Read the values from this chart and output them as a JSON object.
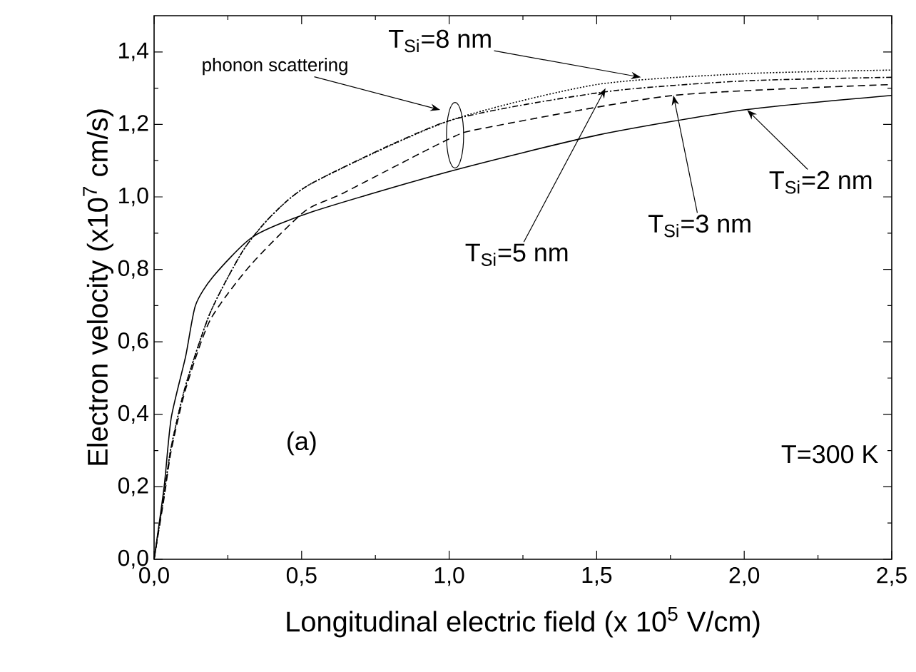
{
  "chart_data": {
    "type": "line",
    "xlabel": "Longitudinal electric field (x 10$^{5}$ V/cm)",
    "ylabel": "Electron velocity (x10$^{7}$ cm/s)",
    "x": [
      0,
      0.034,
      0.058,
      0.107,
      0.14,
      0.2,
      0.335,
      0.54,
      1.0,
      1.5,
      2.0,
      2.5
    ],
    "series": [
      {
        "color": "#000000",
        "line_style": "solid",
        "values": [
          0,
          0.2,
          0.39,
          0.56,
          0.7,
          0.78,
          0.89,
          0.96,
          1.07,
          1.17,
          1.24,
          1.28
        ]
      },
      {
        "color": "#000000",
        "line_style": "dashed",
        "x": [
          0,
          0.034,
          0.058,
          0.107,
          0.19,
          0.325,
          0.51,
          0.64,
          1.0,
          1.12,
          1.76,
          2.5
        ],
        "values": [
          0,
          0.17,
          0.3,
          0.47,
          0.66,
          0.81,
          0.96,
          1.01,
          1.16,
          1.19,
          1.28,
          1.31
        ]
      },
      {
        "color": "#000000",
        "line_style": "dashdot",
        "x": [
          0,
          0.034,
          0.058,
          0.107,
          0.19,
          0.3,
          0.4,
          0.54,
          1.0,
          1.53,
          2.0,
          2.5
        ],
        "values": [
          0,
          0.18,
          0.31,
          0.48,
          0.68,
          0.85,
          0.95,
          1.04,
          1.21,
          1.29,
          1.32,
          1.33
        ]
      },
      {
        "color": "#000000",
        "line_style": "dotted",
        "x": [
          0,
          0.034,
          0.058,
          0.107,
          0.19,
          0.3,
          0.4,
          0.54,
          1.0,
          1.5,
          2.0,
          2.5
        ],
        "values": [
          0,
          0.18,
          0.31,
          0.48,
          0.68,
          0.85,
          0.95,
          1.04,
          1.21,
          1.31,
          1.34,
          1.35
        ]
      }
    ],
    "xlim": [
      0,
      2.5
    ],
    "ylim": [
      0,
      1.5
    ],
    "xticks": [
      {
        "value": 0,
        "label": "0,0"
      },
      {
        "value": 0.5,
        "label": "0,5"
      },
      {
        "value": 1.0,
        "label": "1,0"
      },
      {
        "value": 1.5,
        "label": "1,5"
      },
      {
        "value": 2.0,
        "label": "2,0"
      },
      {
        "value": 2.5,
        "label": "2,5"
      }
    ],
    "yticks": [
      {
        "value": 0,
        "label": "0,0"
      },
      {
        "value": 0.2,
        "label": "0,2"
      },
      {
        "value": 0.4,
        "label": "0,4"
      },
      {
        "value": 0.6,
        "label": "0,6"
      },
      {
        "value": 0.8,
        "label": "0,8"
      },
      {
        "value": 1.0,
        "label": "1,0"
      },
      {
        "value": 1.2,
        "label": "1,2"
      },
      {
        "value": 1.4,
        "label": "1,4"
      }
    ],
    "grid": false,
    "annotations": [
      "phonon scattering",
      {
        "text": "T$_{Si}$=8 nm",
        "x": 1.65,
        "y": 1.33
      },
      {
        "text": "T$_{Si}$=5 nm",
        "x": 1.53,
        "y": 1.3
      },
      {
        "text": "T$_{Si}$=3 nm",
        "x": 1.76,
        "y": 1.28
      },
      {
        "text": "T$_{Si}$=2 nm",
        "x": 2.01,
        "y": 1.24
      },
      "(a)",
      "T=300 K"
    ]
  }
}
